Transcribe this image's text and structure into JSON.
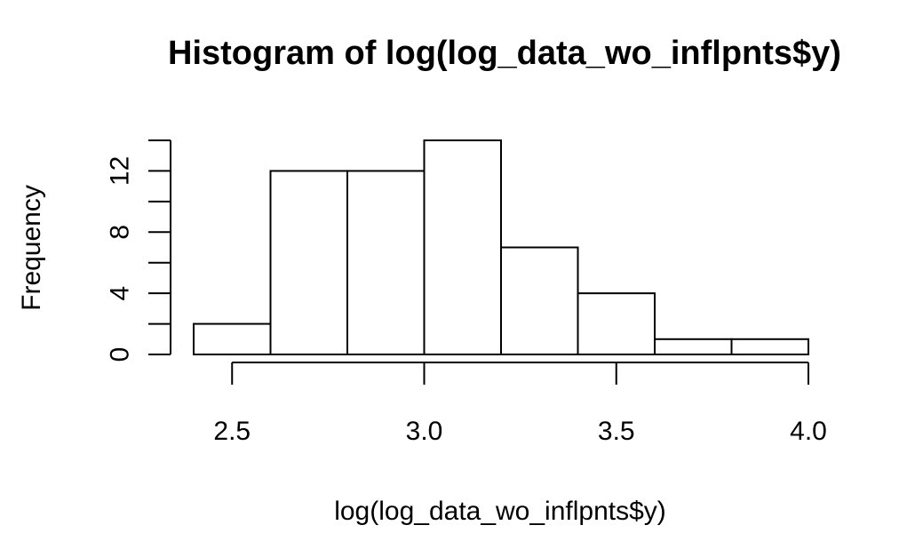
{
  "chart_data": {
    "type": "bar",
    "title": "Histogram of log(log_data_wo_inflpnts$y)",
    "xlabel": "log(log_data_wo_inflpnts$y)",
    "ylabel": "Frequency",
    "bins": [
      {
        "x0": 2.4,
        "x1": 2.6,
        "count": 2
      },
      {
        "x0": 2.6,
        "x1": 2.8,
        "count": 12
      },
      {
        "x0": 2.8,
        "x1": 3.0,
        "count": 12
      },
      {
        "x0": 3.0,
        "x1": 3.2,
        "count": 14
      },
      {
        "x0": 3.2,
        "x1": 3.4,
        "count": 7
      },
      {
        "x0": 3.4,
        "x1": 3.6,
        "count": 4
      },
      {
        "x0": 3.6,
        "x1": 3.8,
        "count": 1
      },
      {
        "x0": 3.8,
        "x1": 4.0,
        "count": 1
      }
    ],
    "xlim": [
      2.4,
      4.0
    ],
    "ylim": [
      0,
      14
    ],
    "x_ticks": [
      2.5,
      3.0,
      3.5,
      4.0
    ],
    "x_tick_labels": [
      "2.5",
      "3.0",
      "3.5",
      "4.0"
    ],
    "y_ticks": [
      0,
      2,
      4,
      6,
      8,
      10,
      12,
      14
    ],
    "y_tick_labels": [
      "0",
      "",
      "4",
      "",
      "8",
      "",
      "12",
      ""
    ],
    "grid": false,
    "legend": "none"
  }
}
